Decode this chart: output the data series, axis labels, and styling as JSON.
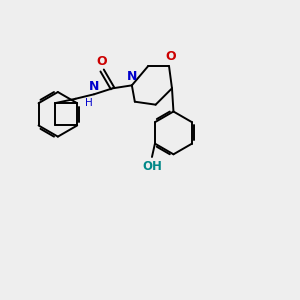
{
  "bg_color": "#eeeeee",
  "bond_color": "#000000",
  "N_color": "#0000cc",
  "O_color": "#cc0000",
  "OH_color": "#008888",
  "lw": 1.4,
  "xlim": [
    0,
    10
  ],
  "ylim": [
    0,
    10
  ]
}
